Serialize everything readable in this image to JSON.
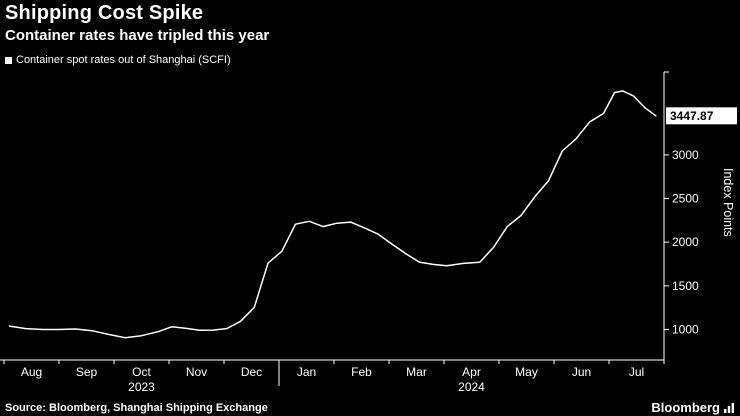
{
  "header": {
    "title": "Shipping Cost Spike",
    "subtitle": "Container rates have tripled this year"
  },
  "legend": {
    "label": "Container spot rates out of Shanghai (SCFI)"
  },
  "footer": {
    "source": "Source: Bloomberg, Shanghai Shipping Exchange",
    "brand": "Bloomberg"
  },
  "chart_data": {
    "type": "line",
    "title": "Shipping Cost Spike",
    "subtitle": "Container rates have tripled this year",
    "legend": [
      "Container spot rates out of Shanghai (SCFI)"
    ],
    "ylabel": "Index Points",
    "xlabel": "",
    "grid": false,
    "background_color": "#000000",
    "line_color": "#ffffff",
    "axis_color": "#ffffff",
    "last_value_label": "3447.87",
    "last_value_box": {
      "bg": "#ffffff",
      "text_color": "#000000"
    },
    "ylim": [
      650,
      3950
    ],
    "yticks": [
      1000,
      1500,
      2000,
      2500,
      3000
    ],
    "x_months": [
      "Aug",
      "Sep",
      "Oct",
      "Nov",
      "Dec",
      "Jan",
      "Feb",
      "Mar",
      "Apr",
      "May",
      "Jun",
      "Jul"
    ],
    "year_labels": [
      {
        "label": "2023",
        "month_center": 2.5
      },
      {
        "label": "2024",
        "month_center": 8.5
      }
    ],
    "year_boundary_month": 5,
    "points": [
      [
        0.1,
        1039
      ],
      [
        0.4,
        1010
      ],
      [
        0.7,
        1000
      ],
      [
        1.0,
        999
      ],
      [
        1.3,
        1005
      ],
      [
        1.6,
        986
      ],
      [
        1.9,
        943
      ],
      [
        2.2,
        906
      ],
      [
        2.5,
        928
      ],
      [
        2.8,
        974
      ],
      [
        3.05,
        1030
      ],
      [
        3.3,
        1014
      ],
      [
        3.55,
        991
      ],
      [
        3.8,
        993
      ],
      [
        4.05,
        1010
      ],
      [
        4.3,
        1093
      ],
      [
        4.55,
        1254
      ],
      [
        4.8,
        1759
      ],
      [
        5.05,
        1896
      ],
      [
        5.3,
        2206
      ],
      [
        5.55,
        2239
      ],
      [
        5.8,
        2179
      ],
      [
        6.05,
        2217
      ],
      [
        6.3,
        2230
      ],
      [
        6.55,
        2165
      ],
      [
        6.8,
        2093
      ],
      [
        7.05,
        1979
      ],
      [
        7.3,
        1870
      ],
      [
        7.55,
        1772
      ],
      [
        7.8,
        1745
      ],
      [
        8.05,
        1731
      ],
      [
        8.35,
        1757
      ],
      [
        8.65,
        1770
      ],
      [
        8.9,
        1940
      ],
      [
        9.15,
        2180
      ],
      [
        9.4,
        2306
      ],
      [
        9.65,
        2520
      ],
      [
        9.9,
        2703
      ],
      [
        10.15,
        3045
      ],
      [
        10.4,
        3185
      ],
      [
        10.65,
        3379
      ],
      [
        10.9,
        3475
      ],
      [
        11.1,
        3714
      ],
      [
        11.25,
        3733
      ],
      [
        11.45,
        3674
      ],
      [
        11.65,
        3542
      ],
      [
        11.85,
        3447.87
      ]
    ]
  }
}
